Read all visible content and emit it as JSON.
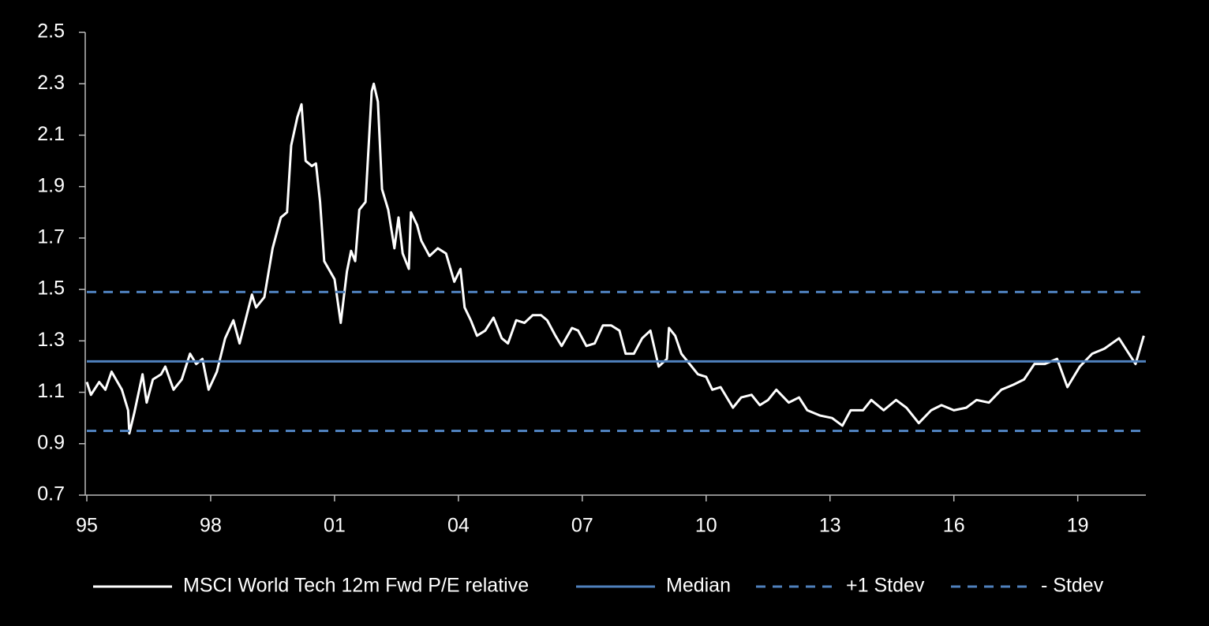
{
  "chart_data": {
    "type": "line",
    "x": [
      1995.0,
      1995.1,
      1995.3,
      1995.45,
      1995.6,
      1995.85,
      1996.0,
      1996.03,
      1996.15,
      1996.35,
      1996.45,
      1996.6,
      1996.8,
      1996.9,
      1997.1,
      1997.3,
      1997.5,
      1997.65,
      1997.8,
      1997.95,
      1998.15,
      1998.35,
      1998.55,
      1998.7,
      1999.0,
      1999.1,
      1999.3,
      1999.5,
      1999.7,
      1999.85,
      1999.95,
      2000.1,
      2000.2,
      2000.3,
      2000.45,
      2000.55,
      2000.65,
      2000.75,
      2001.0,
      2001.15,
      2001.3,
      2001.4,
      2001.5,
      2001.6,
      2001.75,
      2001.9,
      2001.95,
      2002.05,
      2002.15,
      2002.3,
      2002.45,
      2002.55,
      2002.65,
      2002.8,
      2002.85,
      2003.0,
      2003.1,
      2003.3,
      2003.5,
      2003.7,
      2003.9,
      2004.05,
      2004.15,
      2004.3,
      2004.45,
      2004.65,
      2004.85,
      2005.05,
      2005.2,
      2005.4,
      2005.6,
      2005.8,
      2006.0,
      2006.15,
      2006.35,
      2006.5,
      2006.75,
      2006.9,
      2007.1,
      2007.3,
      2007.5,
      2007.7,
      2007.9,
      2008.05,
      2008.25,
      2008.45,
      2008.65,
      2008.85,
      2009.05,
      2009.1,
      2009.25,
      2009.4,
      2009.6,
      2009.8,
      2010.0,
      2010.15,
      2010.35,
      2010.65,
      2010.85,
      2011.1,
      2011.3,
      2011.5,
      2011.7,
      2012.0,
      2012.25,
      2012.45,
      2012.75,
      2013.05,
      2013.3,
      2013.5,
      2013.8,
      2014.0,
      2014.3,
      2014.6,
      2014.85,
      2015.15,
      2015.45,
      2015.7,
      2016.0,
      2016.3,
      2016.55,
      2016.85,
      2017.15,
      2017.45,
      2017.7,
      2017.95,
      2018.2,
      2018.5,
      2018.75,
      2019.05,
      2019.35,
      2019.65,
      2020.0,
      2020.4,
      2020.6
    ],
    "series": [
      {
        "name": "MSCI World Tech 12m Fwd P/E relative",
        "color": "#ffffff",
        "values": [
          1.14,
          1.09,
          1.14,
          1.11,
          1.18,
          1.11,
          1.03,
          0.94,
          1.02,
          1.17,
          1.06,
          1.15,
          1.17,
          1.2,
          1.11,
          1.15,
          1.25,
          1.21,
          1.23,
          1.11,
          1.18,
          1.31,
          1.38,
          1.29,
          1.48,
          1.43,
          1.47,
          1.66,
          1.78,
          1.8,
          2.06,
          2.17,
          2.22,
          2.0,
          1.98,
          1.99,
          1.84,
          1.61,
          1.54,
          1.37,
          1.57,
          1.65,
          1.61,
          1.81,
          1.84,
          2.27,
          2.3,
          2.23,
          1.89,
          1.81,
          1.66,
          1.78,
          1.64,
          1.58,
          1.8,
          1.75,
          1.69,
          1.63,
          1.66,
          1.64,
          1.53,
          1.58,
          1.43,
          1.38,
          1.32,
          1.34,
          1.39,
          1.31,
          1.29,
          1.38,
          1.37,
          1.4,
          1.4,
          1.38,
          1.32,
          1.28,
          1.35,
          1.34,
          1.28,
          1.29,
          1.36,
          1.36,
          1.34,
          1.25,
          1.25,
          1.31,
          1.34,
          1.2,
          1.23,
          1.35,
          1.32,
          1.25,
          1.21,
          1.17,
          1.16,
          1.11,
          1.12,
          1.04,
          1.08,
          1.09,
          1.05,
          1.07,
          1.11,
          1.06,
          1.08,
          1.03,
          1.01,
          1.0,
          0.97,
          1.03,
          1.03,
          1.07,
          1.03,
          1.07,
          1.04,
          0.98,
          1.03,
          1.05,
          1.03,
          1.04,
          1.07,
          1.06,
          1.11,
          1.13,
          1.15,
          1.21,
          1.21,
          1.23,
          1.12,
          1.2,
          1.25,
          1.27,
          1.31,
          1.21,
          1.32
        ]
      },
      {
        "name": "Median",
        "color": "#4f81bd",
        "value": 1.22
      },
      {
        "name": "+1 Stdev",
        "color": "#4f81bd",
        "value": 1.49,
        "dashed": true
      },
      {
        "name": "- Stdev",
        "color": "#4f81bd",
        "value": 0.95,
        "dashed": true
      }
    ],
    "xlim": [
      1995,
      2020.65
    ],
    "xticks": [
      {
        "value": 1995,
        "label": "95"
      },
      {
        "value": 1998,
        "label": "98"
      },
      {
        "value": 2001,
        "label": "01"
      },
      {
        "value": 2004,
        "label": "04"
      },
      {
        "value": 2007,
        "label": "07"
      },
      {
        "value": 2010,
        "label": "10"
      },
      {
        "value": 2013,
        "label": "13"
      },
      {
        "value": 2016,
        "label": "16"
      },
      {
        "value": 2019,
        "label": "19"
      }
    ],
    "ylim": [
      0.7,
      2.5
    ],
    "yticks": [
      0.7,
      0.9,
      1.1,
      1.3,
      1.5,
      1.7,
      1.9,
      2.1,
      2.3,
      2.5
    ],
    "legend": "bottom"
  }
}
